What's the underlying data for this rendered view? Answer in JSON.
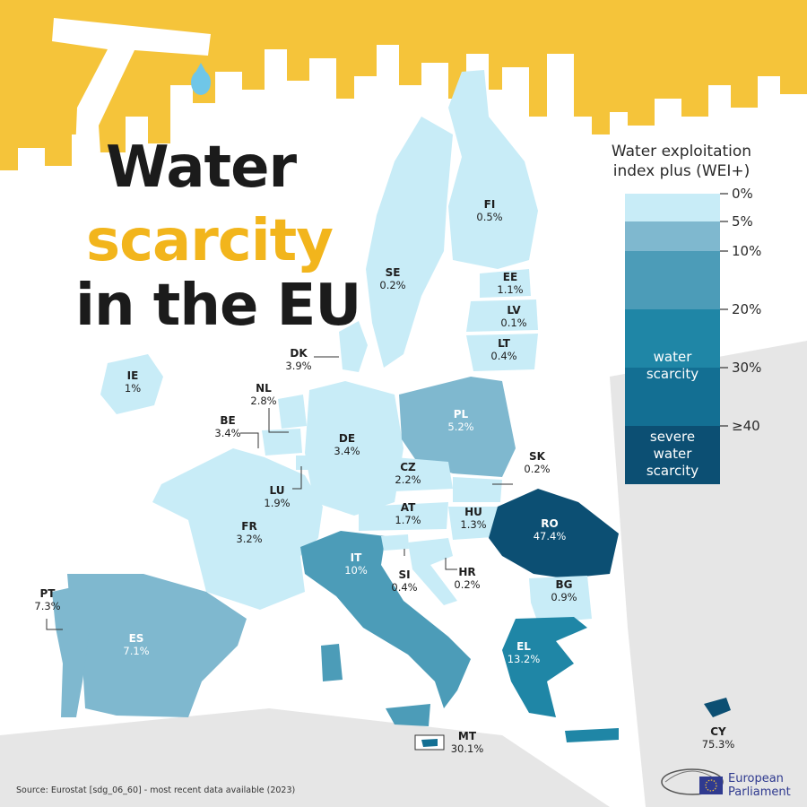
{
  "title": {
    "line1": "Water",
    "line2": "scarcity",
    "line3": "in the EU"
  },
  "legend": {
    "title_line1": "Water exploitation",
    "title_line2": "index plus (WEI+)",
    "ticks": [
      "0%",
      "5%",
      "10%",
      "20%",
      "30%",
      "≥40"
    ],
    "band_labels": {
      "water_scarcity": [
        "water",
        "scarcity"
      ],
      "severe": [
        "severe",
        "water",
        "scarcity"
      ]
    },
    "colors": [
      "#c8ecf7",
      "#7fb8cf",
      "#4c9cb8",
      "#1f86a6",
      "#136f93",
      "#0c4f73"
    ]
  },
  "countries": [
    {
      "code": "FI",
      "value": "0.5%"
    },
    {
      "code": "SE",
      "value": "0.2%"
    },
    {
      "code": "EE",
      "value": "1.1%"
    },
    {
      "code": "LV",
      "value": "0.1%"
    },
    {
      "code": "LT",
      "value": "0.4%"
    },
    {
      "code": "DK",
      "value": "3.9%"
    },
    {
      "code": "IE",
      "value": "1%"
    },
    {
      "code": "NL",
      "value": "2.8%"
    },
    {
      "code": "BE",
      "value": "3.4%"
    },
    {
      "code": "DE",
      "value": "3.4%"
    },
    {
      "code": "PL",
      "value": "5.2%"
    },
    {
      "code": "SK",
      "value": "0.2%"
    },
    {
      "code": "CZ",
      "value": "2.2%"
    },
    {
      "code": "LU",
      "value": "1.9%"
    },
    {
      "code": "AT",
      "value": "1.7%"
    },
    {
      "code": "HU",
      "value": "1.3%"
    },
    {
      "code": "RO",
      "value": "47.4%"
    },
    {
      "code": "FR",
      "value": "3.2%"
    },
    {
      "code": "IT",
      "value": "10%"
    },
    {
      "code": "SI",
      "value": "0.4%"
    },
    {
      "code": "HR",
      "value": "0.2%"
    },
    {
      "code": "BG",
      "value": "0.9%"
    },
    {
      "code": "PT",
      "value": "7.3%"
    },
    {
      "code": "ES",
      "value": "7.1%"
    },
    {
      "code": "EL",
      "value": "13.2%"
    },
    {
      "code": "MT",
      "value": "30.1%"
    },
    {
      "code": "CY",
      "value": "75.3%"
    }
  ],
  "source": "Source: Eurostat [sdg_06_60] - most recent data available (2023)",
  "logo": {
    "line1": "European",
    "line2": "Parliament"
  }
}
